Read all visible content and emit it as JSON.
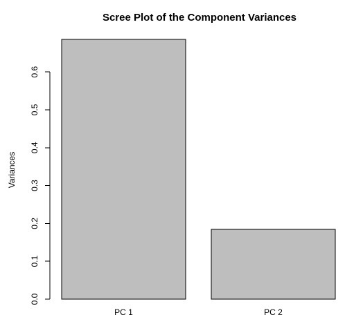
{
  "chart_data": {
    "type": "bar",
    "title": "Scree Plot of the Component Variances",
    "xlabel": "",
    "ylabel": "Variances",
    "categories": [
      "PC 1",
      "PC 2"
    ],
    "values": [
      0.686,
      0.184
    ],
    "ylim": [
      0,
      0.686
    ],
    "yticks": [
      0.0,
      0.1,
      0.2,
      0.3,
      0.4,
      0.5,
      0.6
    ],
    "ytick_labels": [
      "0.0",
      "0.1",
      "0.2",
      "0.3",
      "0.4",
      "0.5",
      "0.6"
    ],
    "bar_color": "#bebebe",
    "grid": false,
    "legend": "none"
  }
}
